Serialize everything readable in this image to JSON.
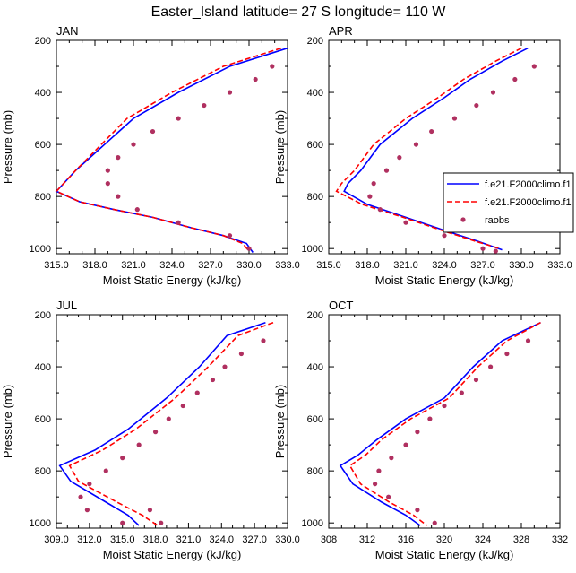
{
  "figure": {
    "title": "Easter_Island  latitude= 27 S longitude= 110 W"
  },
  "legend": {
    "entries": [
      {
        "label": "f.e21.F2000climo.f1",
        "style": "solid",
        "color": "#0000ff"
      },
      {
        "label": "f.e21.F2000climo.f1",
        "style": "dashed",
        "color": "#ff0000"
      },
      {
        "label": "raobs",
        "style": "marker",
        "color": "#b03060"
      }
    ]
  },
  "chart_data": [
    {
      "type": "line",
      "title": "JAN",
      "xlabel": "Moist Static Energy (kJ/kg)",
      "ylabel": "Pressure (mb)",
      "xlim": [
        315,
        333
      ],
      "ylim": [
        1020,
        200
      ],
      "xticks": [
        "315.0",
        "318.0",
        "321.0",
        "324.0",
        "327.0",
        "330.0",
        "333.0"
      ],
      "yticks": [
        "200",
        "400",
        "600",
        "800",
        "1000"
      ],
      "series": [
        {
          "name": "f.e21.F2000climo.f1",
          "style": "solid",
          "x": [
            333.0,
            328.5,
            324.5,
            321.0,
            316.5,
            315.0,
            316.8,
            319.5,
            322.5,
            325.5,
            328.0,
            329.8,
            330.3
          ],
          "y": [
            230,
            300,
            400,
            500,
            700,
            780,
            820,
            850,
            880,
            920,
            950,
            980,
            1015
          ]
        },
        {
          "name": "f.e21.F2000climo.f1",
          "style": "dashed",
          "x": [
            332.5,
            328.0,
            324.0,
            320.5,
            316.5,
            315.0,
            316.8,
            319.5,
            322.5,
            325.5,
            328.0,
            329.5,
            330.0
          ],
          "y": [
            230,
            300,
            400,
            500,
            700,
            780,
            820,
            850,
            880,
            920,
            950,
            980,
            1010
          ]
        },
        {
          "name": "raobs",
          "style": "marker",
          "x": [
            331.8,
            330.5,
            328.5,
            326.5,
            324.5,
            322.5,
            321.0,
            319.8,
            319.0,
            319.0,
            319.8,
            321.3,
            324.5,
            328.5,
            330.0
          ],
          "y": [
            300,
            350,
            400,
            450,
            500,
            550,
            600,
            650,
            700,
            750,
            800,
            850,
            900,
            950,
            1000
          ]
        }
      ]
    },
    {
      "type": "line",
      "title": "APR",
      "xlabel": "Moist Static Energy (kJ/kg)",
      "ylabel": "Pressure (mb)",
      "xlim": [
        315,
        333
      ],
      "ylim": [
        1020,
        200
      ],
      "xticks": [
        "315.0",
        "318.0",
        "321.0",
        "324.0",
        "327.0",
        "330.0",
        "333.0"
      ],
      "yticks": [
        "200",
        "400",
        "600",
        "800",
        "1000"
      ],
      "series": [
        {
          "name": "f.e21.F2000climo.f1",
          "style": "solid",
          "x": [
            330.5,
            328.5,
            326.0,
            324.0,
            321.5,
            319.0,
            317.5,
            316.5,
            316.2,
            318.0,
            321.0,
            324.0,
            326.5,
            328.5
          ],
          "y": [
            230,
            280,
            350,
            420,
            500,
            600,
            700,
            750,
            780,
            830,
            880,
            930,
            970,
            1005
          ]
        },
        {
          "name": "f.e21.F2000climo.f1",
          "style": "dashed",
          "x": [
            330.0,
            328.0,
            325.5,
            323.5,
            321.0,
            318.5,
            317.0,
            316.0,
            315.6,
            317.6,
            320.8,
            323.8,
            326.3,
            328.3
          ],
          "y": [
            230,
            280,
            350,
            420,
            500,
            600,
            700,
            750,
            780,
            830,
            880,
            930,
            970,
            1000
          ]
        },
        {
          "name": "raobs",
          "style": "marker",
          "x": [
            331.0,
            329.5,
            327.8,
            326.5,
            324.8,
            323.0,
            321.8,
            320.5,
            319.5,
            318.5,
            318.2,
            319.0,
            321.0,
            324.0,
            327.0,
            328.0
          ],
          "y": [
            300,
            350,
            400,
            450,
            500,
            550,
            600,
            650,
            700,
            750,
            800,
            850,
            900,
            950,
            1000,
            1010
          ]
        }
      ]
    },
    {
      "type": "line",
      "title": "JUL",
      "xlabel": "Moist Static Energy (kJ/kg)",
      "ylabel": "Pressure (mb)",
      "xlim": [
        309,
        330
      ],
      "ylim": [
        1020,
        200
      ],
      "xticks": [
        "309.0",
        "312.0",
        "315.0",
        "318.0",
        "321.0",
        "324.0",
        "327.0",
        "330.0"
      ],
      "yticks": [
        "200",
        "400",
        "600",
        "800",
        "1000"
      ],
      "series": [
        {
          "name": "f.e21.F2000climo.f1",
          "style": "solid",
          "x": [
            328.0,
            324.5,
            322.0,
            319.0,
            315.5,
            312.5,
            309.3,
            310.3,
            313.5,
            315.5,
            316.5
          ],
          "y": [
            230,
            280,
            400,
            520,
            640,
            720,
            780,
            840,
            920,
            970,
            1010
          ]
        },
        {
          "name": "f.e21.F2000climo.f1",
          "style": "dashed",
          "x": [
            328.7,
            325.5,
            322.8,
            319.8,
            316.2,
            313.2,
            310.2,
            311.0,
            314.5,
            316.8,
            318.2
          ],
          "y": [
            230,
            280,
            400,
            520,
            640,
            720,
            780,
            840,
            920,
            970,
            1010
          ]
        },
        {
          "name": "raobs",
          "style": "marker",
          "x": [
            327.8,
            325.8,
            324.3,
            323.2,
            321.8,
            320.5,
            319.2,
            318.0,
            316.5,
            315.0,
            313.5,
            312.0,
            311.2,
            311.8,
            315.0,
            317.5,
            318.5
          ],
          "y": [
            300,
            350,
            400,
            450,
            500,
            550,
            600,
            650,
            700,
            750,
            800,
            850,
            900,
            950,
            1000,
            950,
            1000
          ]
        }
      ]
    },
    {
      "type": "line",
      "title": "OCT",
      "xlabel": "Moist Static Energy (kJ/kg)",
      "ylabel": "Pressure (mb)",
      "xlim": [
        308,
        332
      ],
      "ylim": [
        1020,
        200
      ],
      "xticks": [
        "308",
        "312",
        "316",
        "320",
        "324",
        "328",
        "332"
      ],
      "yticks": [
        "200",
        "400",
        "600",
        "800",
        "1000"
      ],
      "series": [
        {
          "name": "f.e21.F2000climo.f1",
          "style": "solid",
          "x": [
            330.0,
            326.0,
            323.0,
            320.0,
            316.0,
            313.0,
            311.0,
            309.2,
            310.5,
            313.5,
            316.0,
            317.5
          ],
          "y": [
            230,
            300,
            400,
            520,
            600,
            680,
            740,
            780,
            850,
            920,
            970,
            1010
          ]
        },
        {
          "name": "f.e21.F2000climo.f1",
          "style": "dashed",
          "x": [
            330.0,
            326.5,
            323.5,
            320.5,
            316.5,
            313.5,
            311.8,
            310.2,
            311.3,
            314.3,
            316.8,
            318.2
          ],
          "y": [
            230,
            300,
            400,
            520,
            600,
            680,
            740,
            780,
            850,
            920,
            970,
            1010
          ]
        },
        {
          "name": "raobs",
          "style": "marker",
          "x": [
            328.7,
            326.5,
            324.8,
            323.3,
            321.8,
            320.0,
            318.5,
            317.2,
            316.0,
            314.5,
            313.2,
            312.8,
            314.2,
            317.2,
            319.0
          ],
          "y": [
            300,
            350,
            400,
            450,
            500,
            550,
            600,
            650,
            700,
            750,
            800,
            850,
            900,
            950,
            1000
          ]
        }
      ]
    }
  ]
}
